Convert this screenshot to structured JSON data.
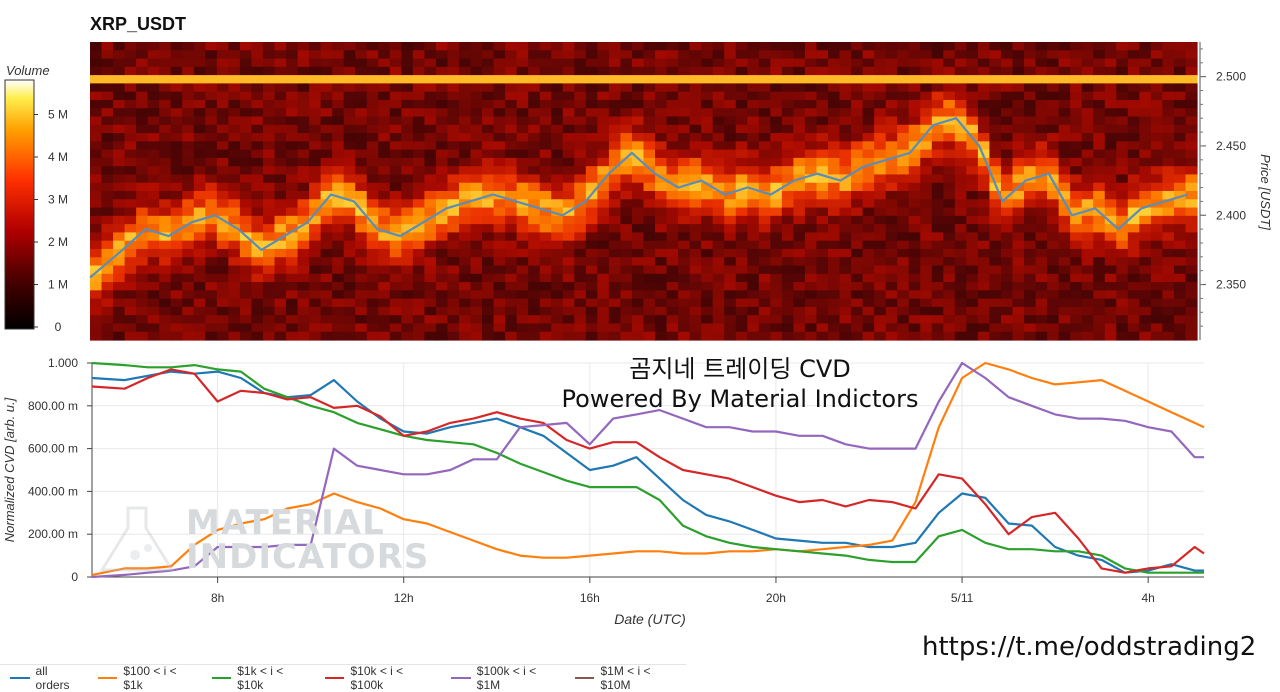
{
  "title": "XRP_USDT",
  "overlay": {
    "line1": "곰지네 트레이딩 CVD",
    "line2": "Powered By Material Indictors",
    "url": "https://t.me/oddstrading2",
    "watermark_line1": "MATERIAL",
    "watermark_line2": "INDICATORS"
  },
  "legend": [
    {
      "label": "all orders",
      "color": "#1f77b4"
    },
    {
      "label": "$100 < i < $1k",
      "color": "#ff7f0e"
    },
    {
      "label": "$1k < i < $10k",
      "color": "#2ca02c"
    },
    {
      "label": "$10k < i < $100k",
      "color": "#d62728"
    },
    {
      "label": "$100k < i < $1M",
      "color": "#9467bd"
    },
    {
      "label": "$1M < i < $10M",
      "color": "#8c564b"
    }
  ],
  "chart_data": [
    {
      "type": "heatmap",
      "title": "XRP_USDT",
      "colorbar": {
        "label": "Volume",
        "ticks": [
          "0",
          "1 M",
          "2 M",
          "3 M",
          "4 M",
          "5 M"
        ],
        "range": [
          0,
          5800000
        ]
      },
      "ylabel": "Price [USDT]",
      "y_ticks": [
        "2.350",
        "2.400",
        "2.450",
        "2.500"
      ],
      "ylim": [
        2.31,
        2.525
      ],
      "price_line": {
        "color": "#5b8db8",
        "x_hours": [
          5.3,
          6.0,
          6.5,
          7.0,
          7.5,
          8.0,
          8.5,
          9.0,
          9.5,
          10.0,
          10.5,
          11.0,
          11.5,
          12.0,
          12.5,
          13.0,
          13.5,
          14.0,
          14.5,
          15.0,
          15.5,
          16.0,
          16.5,
          17.0,
          17.5,
          18.0,
          18.5,
          19.0,
          19.5,
          20.0,
          20.5,
          21.0,
          21.5,
          22.0,
          22.5,
          23.0,
          23.5,
          24.0,
          24.5,
          25.0,
          25.5,
          26.0,
          26.5,
          27.0,
          27.5,
          28.0,
          28.5,
          29.0
        ],
        "y_price": [
          2.355,
          2.375,
          2.39,
          2.385,
          2.395,
          2.4,
          2.39,
          2.375,
          2.385,
          2.395,
          2.415,
          2.41,
          2.39,
          2.385,
          2.395,
          2.405,
          2.41,
          2.415,
          2.41,
          2.405,
          2.4,
          2.41,
          2.43,
          2.445,
          2.43,
          2.42,
          2.425,
          2.415,
          2.42,
          2.415,
          2.425,
          2.43,
          2.425,
          2.435,
          2.44,
          2.445,
          2.465,
          2.47,
          2.45,
          2.41,
          2.425,
          2.43,
          2.4,
          2.405,
          2.39,
          2.405,
          2.41,
          2.415
        ]
      }
    },
    {
      "type": "line",
      "xlabel": "Date (UTC)",
      "ylabel": "Normalized CVD [arb. u.]",
      "x_ticks": [
        "8h",
        "12h",
        "16h",
        "20h",
        "5/11",
        "4h"
      ],
      "x_tick_hours": [
        8,
        12,
        16,
        20,
        24,
        28
      ],
      "xlim_hours": [
        5.3,
        29.2
      ],
      "y_ticks": [
        "0",
        "200.00 m",
        "400.00 m",
        "600.00 m",
        "800.00 m",
        "1.000"
      ],
      "ylim": [
        0,
        1.0
      ],
      "x_hours": [
        5.3,
        6.0,
        6.5,
        7.0,
        7.5,
        8.0,
        8.5,
        9.0,
        9.5,
        10.0,
        10.5,
        11.0,
        11.5,
        12.0,
        12.5,
        13.0,
        13.5,
        14.0,
        14.5,
        15.0,
        15.5,
        16.0,
        16.5,
        17.0,
        17.5,
        18.0,
        18.5,
        19.0,
        19.5,
        20.0,
        20.5,
        21.0,
        21.5,
        22.0,
        22.5,
        23.0,
        23.5,
        24.0,
        24.5,
        25.0,
        25.5,
        26.0,
        26.5,
        27.0,
        27.5,
        28.0,
        28.5,
        29.0,
        29.2
      ],
      "series": [
        {
          "name": "all orders",
          "values": [
            0.93,
            0.92,
            0.94,
            0.96,
            0.95,
            0.96,
            0.93,
            0.86,
            0.84,
            0.85,
            0.92,
            0.82,
            0.74,
            0.68,
            0.67,
            0.7,
            0.72,
            0.74,
            0.7,
            0.66,
            0.58,
            0.5,
            0.52,
            0.56,
            0.46,
            0.36,
            0.29,
            0.26,
            0.22,
            0.18,
            0.17,
            0.16,
            0.16,
            0.14,
            0.14,
            0.16,
            0.3,
            0.39,
            0.37,
            0.25,
            0.24,
            0.14,
            0.1,
            0.08,
            0.02,
            0.03,
            0.06,
            0.03,
            0.03
          ]
        },
        {
          "name": "$100 < i < $1k",
          "values": [
            0.01,
            0.04,
            0.04,
            0.05,
            0.15,
            0.22,
            0.25,
            0.27,
            0.32,
            0.34,
            0.39,
            0.35,
            0.32,
            0.27,
            0.25,
            0.21,
            0.17,
            0.13,
            0.1,
            0.09,
            0.09,
            0.1,
            0.11,
            0.12,
            0.12,
            0.11,
            0.11,
            0.12,
            0.12,
            0.13,
            0.12,
            0.13,
            0.14,
            0.15,
            0.17,
            0.35,
            0.7,
            0.93,
            1.0,
            0.97,
            0.93,
            0.9,
            0.91,
            0.92,
            0.87,
            0.82,
            0.77,
            0.72,
            0.7
          ]
        },
        {
          "name": "$1k < i < $10k",
          "values": [
            1.0,
            0.99,
            0.98,
            0.98,
            0.99,
            0.97,
            0.96,
            0.88,
            0.84,
            0.8,
            0.77,
            0.72,
            0.69,
            0.66,
            0.64,
            0.63,
            0.62,
            0.58,
            0.53,
            0.49,
            0.45,
            0.42,
            0.42,
            0.42,
            0.36,
            0.24,
            0.19,
            0.16,
            0.14,
            0.13,
            0.12,
            0.11,
            0.1,
            0.08,
            0.07,
            0.07,
            0.19,
            0.22,
            0.16,
            0.13,
            0.13,
            0.12,
            0.12,
            0.1,
            0.04,
            0.02,
            0.02,
            0.02,
            0.02
          ]
        },
        {
          "name": "$10k < i < $100k",
          "values": [
            0.89,
            0.88,
            0.93,
            0.97,
            0.95,
            0.82,
            0.87,
            0.86,
            0.83,
            0.84,
            0.79,
            0.8,
            0.75,
            0.66,
            0.68,
            0.72,
            0.74,
            0.77,
            0.74,
            0.72,
            0.64,
            0.6,
            0.63,
            0.63,
            0.56,
            0.5,
            0.48,
            0.46,
            0.42,
            0.38,
            0.35,
            0.36,
            0.33,
            0.36,
            0.35,
            0.32,
            0.48,
            0.46,
            0.34,
            0.2,
            0.28,
            0.3,
            0.18,
            0.04,
            0.02,
            0.04,
            0.05,
            0.14,
            0.11
          ]
        },
        {
          "name": "$100k < i < $1M",
          "values": [
            0.0,
            0.01,
            0.02,
            0.03,
            0.05,
            0.14,
            0.14,
            0.14,
            0.15,
            0.15,
            0.6,
            0.52,
            0.5,
            0.48,
            0.48,
            0.5,
            0.55,
            0.55,
            0.7,
            0.71,
            0.72,
            0.62,
            0.74,
            0.76,
            0.78,
            0.74,
            0.7,
            0.7,
            0.68,
            0.68,
            0.66,
            0.66,
            0.62,
            0.6,
            0.6,
            0.6,
            0.82,
            1.0,
            0.93,
            0.84,
            0.8,
            0.76,
            0.74,
            0.74,
            0.73,
            0.7,
            0.68,
            0.56,
            0.56
          ]
        },
        {
          "name": "$1M < i < $10M",
          "values": []
        }
      ]
    }
  ]
}
